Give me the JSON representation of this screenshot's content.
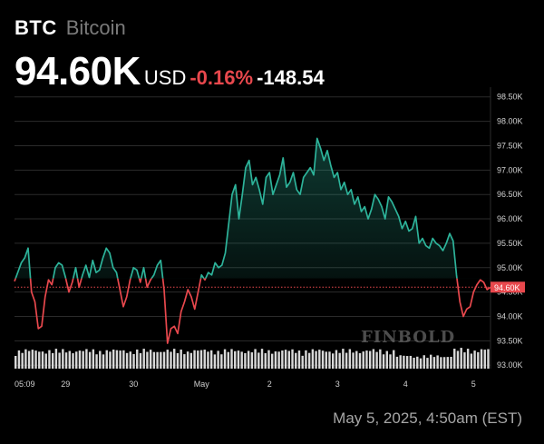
{
  "header": {
    "symbol": "BTC",
    "name": "Bitcoin",
    "price": "94.60K",
    "currency": "USD",
    "change_pct": "-0.16%",
    "change_abs": "-148.54"
  },
  "footer": {
    "timestamp": "May 5, 2025, 4:50am (EST)"
  },
  "watermark": "FINBOLD",
  "colors": {
    "up": "#2db39a",
    "down": "#e8484d",
    "grid": "#2b2b2b",
    "volume": "#d8d8d8",
    "background": "#000000"
  },
  "chart_data": {
    "type": "line",
    "title": "",
    "xlabel": "",
    "ylabel": "",
    "ylim": [
      92.93,
      98.7
    ],
    "grid": true,
    "baseline": 94.78,
    "current_label": "94.60K",
    "current_value": 94.6,
    "y_ticks": [
      {
        "v": 98.5,
        "label": "98.50K"
      },
      {
        "v": 98.0,
        "label": "98.00K"
      },
      {
        "v": 97.5,
        "label": "97.50K"
      },
      {
        "v": 97.0,
        "label": "97.00K"
      },
      {
        "v": 96.5,
        "label": "96.50K"
      },
      {
        "v": 96.0,
        "label": "96.00K"
      },
      {
        "v": 95.5,
        "label": "95.50K"
      },
      {
        "v": 95.0,
        "label": "95.00K"
      },
      {
        "v": 94.5,
        "label": "94.50K"
      },
      {
        "v": 94.0,
        "label": "94.00K"
      },
      {
        "v": 93.5,
        "label": "93.50K"
      },
      {
        "v": 93.0,
        "label": "93.00K"
      }
    ],
    "x_ticks": [
      {
        "i": 0,
        "label": "05:09"
      },
      {
        "i": 15,
        "label": "29"
      },
      {
        "i": 35,
        "label": "30"
      },
      {
        "i": 55,
        "label": "May"
      },
      {
        "i": 75,
        "label": "2"
      },
      {
        "i": 95,
        "label": "3"
      },
      {
        "i": 115,
        "label": "4"
      },
      {
        "i": 135,
        "label": "5"
      }
    ],
    "n_points": 141,
    "anchors": [
      [
        0,
        94.72
      ],
      [
        2,
        95.1
      ],
      [
        3,
        95.2
      ],
      [
        4,
        95.4
      ],
      [
        5,
        94.5
      ],
      [
        6,
        94.3
      ],
      [
        7,
        93.75
      ],
      [
        8,
        93.8
      ],
      [
        9,
        94.4
      ],
      [
        10,
        94.75
      ],
      [
        11,
        94.65
      ],
      [
        12,
        95.0
      ],
      [
        13,
        95.1
      ],
      [
        14,
        95.05
      ],
      [
        15,
        94.8
      ],
      [
        16,
        94.5
      ],
      [
        17,
        94.7
      ],
      [
        18,
        95.0
      ],
      [
        19,
        94.6
      ],
      [
        20,
        94.85
      ],
      [
        21,
        95.05
      ],
      [
        22,
        94.8
      ],
      [
        23,
        95.15
      ],
      [
        24,
        94.9
      ],
      [
        25,
        94.95
      ],
      [
        26,
        95.2
      ],
      [
        27,
        95.4
      ],
      [
        28,
        95.3
      ],
      [
        29,
        95.0
      ],
      [
        30,
        94.9
      ],
      [
        31,
        94.55
      ],
      [
        32,
        94.2
      ],
      [
        33,
        94.4
      ],
      [
        34,
        94.75
      ],
      [
        35,
        95.0
      ],
      [
        36,
        94.95
      ],
      [
        37,
        94.7
      ],
      [
        38,
        95.0
      ],
      [
        39,
        94.6
      ],
      [
        40,
        94.75
      ],
      [
        41,
        94.85
      ],
      [
        42,
        95.05
      ],
      [
        43,
        95.15
      ],
      [
        44,
        94.55
      ],
      [
        45,
        93.45
      ],
      [
        46,
        93.75
      ],
      [
        47,
        93.8
      ],
      [
        48,
        93.65
      ],
      [
        49,
        94.1
      ],
      [
        50,
        94.3
      ],
      [
        51,
        94.55
      ],
      [
        52,
        94.4
      ],
      [
        53,
        94.15
      ],
      [
        54,
        94.5
      ],
      [
        55,
        94.85
      ],
      [
        56,
        94.75
      ],
      [
        57,
        94.9
      ],
      [
        58,
        94.85
      ],
      [
        59,
        95.1
      ],
      [
        60,
        95.0
      ],
      [
        61,
        95.05
      ],
      [
        62,
        95.3
      ],
      [
        63,
        95.9
      ],
      [
        64,
        96.5
      ],
      [
        65,
        96.7
      ],
      [
        66,
        96.0
      ],
      [
        67,
        96.5
      ],
      [
        68,
        97.05
      ],
      [
        69,
        97.2
      ],
      [
        70,
        96.7
      ],
      [
        71,
        96.85
      ],
      [
        72,
        96.6
      ],
      [
        73,
        96.3
      ],
      [
        74,
        96.85
      ],
      [
        75,
        96.95
      ],
      [
        76,
        96.5
      ],
      [
        77,
        96.7
      ],
      [
        78,
        96.9
      ],
      [
        79,
        97.25
      ],
      [
        80,
        96.65
      ],
      [
        81,
        96.75
      ],
      [
        82,
        96.95
      ],
      [
        83,
        96.6
      ],
      [
        84,
        96.5
      ],
      [
        85,
        96.85
      ],
      [
        86,
        96.95
      ],
      [
        87,
        97.05
      ],
      [
        88,
        96.9
      ],
      [
        89,
        97.65
      ],
      [
        90,
        97.45
      ],
      [
        91,
        97.2
      ],
      [
        92,
        97.4
      ],
      [
        93,
        97.1
      ],
      [
        94,
        96.85
      ],
      [
        95,
        96.95
      ],
      [
        96,
        96.6
      ],
      [
        97,
        96.75
      ],
      [
        98,
        96.5
      ],
      [
        99,
        96.6
      ],
      [
        100,
        96.3
      ],
      [
        101,
        96.45
      ],
      [
        102,
        96.15
      ],
      [
        103,
        96.25
      ],
      [
        104,
        96.0
      ],
      [
        105,
        96.2
      ],
      [
        106,
        96.5
      ],
      [
        107,
        96.4
      ],
      [
        108,
        96.25
      ],
      [
        109,
        96.0
      ],
      [
        110,
        96.45
      ],
      [
        111,
        96.35
      ],
      [
        112,
        96.2
      ],
      [
        113,
        96.05
      ],
      [
        114,
        95.8
      ],
      [
        115,
        95.95
      ],
      [
        116,
        95.75
      ],
      [
        117,
        95.8
      ],
      [
        118,
        96.05
      ],
      [
        119,
        95.5
      ],
      [
        120,
        95.6
      ],
      [
        121,
        95.45
      ],
      [
        122,
        95.4
      ],
      [
        123,
        95.6
      ],
      [
        124,
        95.5
      ],
      [
        125,
        95.45
      ],
      [
        126,
        95.35
      ],
      [
        127,
        95.5
      ],
      [
        128,
        95.7
      ],
      [
        129,
        95.55
      ],
      [
        130,
        94.85
      ],
      [
        131,
        94.3
      ],
      [
        132,
        94.0
      ],
      [
        133,
        94.15
      ],
      [
        134,
        94.2
      ],
      [
        135,
        94.5
      ],
      [
        136,
        94.65
      ],
      [
        137,
        94.75
      ],
      [
        138,
        94.7
      ],
      [
        139,
        94.55
      ],
      [
        140,
        94.6
      ]
    ]
  }
}
